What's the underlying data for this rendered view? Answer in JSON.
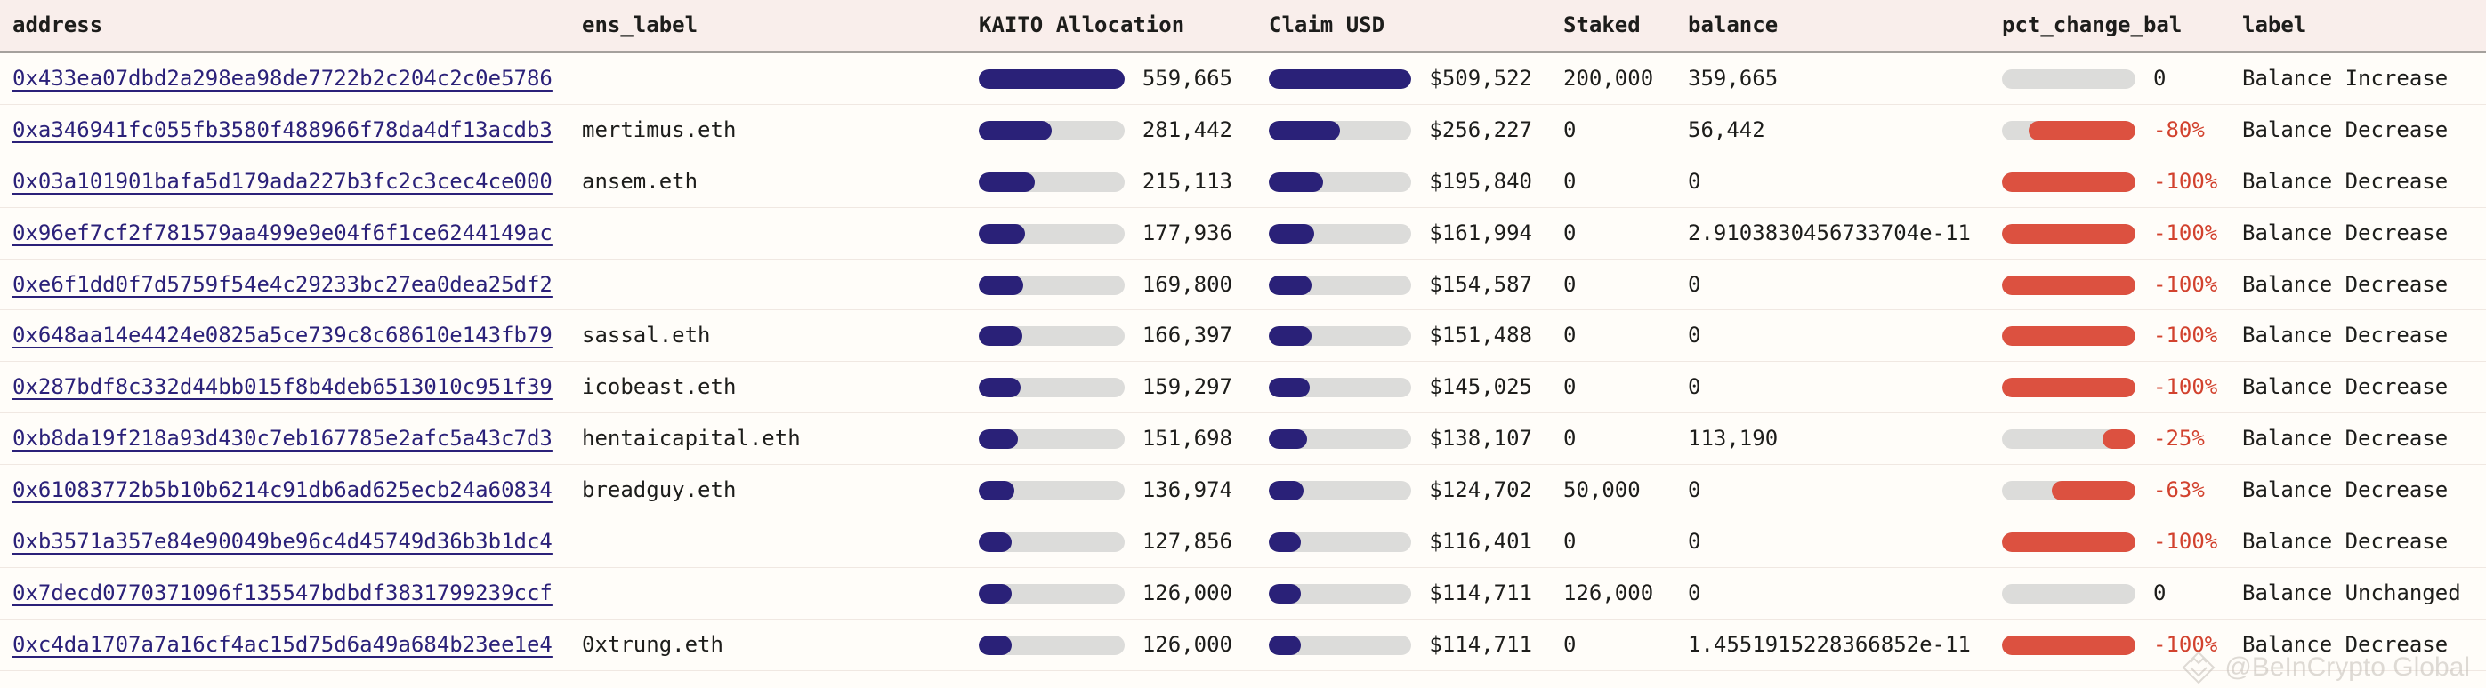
{
  "colors": {
    "bg": "#fffdf9",
    "text": "#1d1d1b",
    "header_bg": "#f9eeeb",
    "header_divider": "#a5a19d",
    "row_divider": "#f0e8e2",
    "track": "#dcdcda",
    "accent_navy": "#2a2178",
    "accent_red": "#dc5140",
    "red_text": "#d2422e",
    "link": "#2b2179",
    "watermark": "#c9c3bd"
  },
  "table": {
    "columns": [
      {
        "key": "address",
        "label": "address"
      },
      {
        "key": "ens_label",
        "label": "ens_label"
      },
      {
        "key": "kaito_allocation",
        "label": "KAITO Allocation"
      },
      {
        "key": "claim_usd",
        "label": "Claim USD"
      },
      {
        "key": "staked",
        "label": "Staked"
      },
      {
        "key": "balance",
        "label": "balance"
      },
      {
        "key": "pct_change_bal",
        "label": "pct_change_bal"
      },
      {
        "key": "label",
        "label": "label"
      }
    ],
    "rows": [
      {
        "address": "0x433ea07dbd2a298ea98de7722b2c204c2c0e5786",
        "ens_label": "",
        "kaito_allocation": "559,665",
        "kaito_fill_pct": 100,
        "claim_usd": "$509,522",
        "claim_fill_pct": 100,
        "staked": "200,000",
        "balance": "359,665",
        "pct_change_bal": "0",
        "pct_fill_pct": 0,
        "pct_negative": false,
        "label": "Balance Increase"
      },
      {
        "address": "0xa346941fc055fb3580f488966f78da4df13acdb3",
        "ens_label": "mertimus.eth",
        "kaito_allocation": "281,442",
        "kaito_fill_pct": 50.3,
        "claim_usd": "$256,227",
        "claim_fill_pct": 50.3,
        "staked": "0",
        "balance": "56,442",
        "pct_change_bal": "-80%",
        "pct_fill_pct": 80,
        "pct_negative": true,
        "label": "Balance Decrease"
      },
      {
        "address": "0x03a101901bafa5d179ada227b3fc2c3cec4ce000",
        "ens_label": "ansem.eth",
        "kaito_allocation": "215,113",
        "kaito_fill_pct": 38.4,
        "claim_usd": "$195,840",
        "claim_fill_pct": 38.4,
        "staked": "0",
        "balance": "0",
        "pct_change_bal": "-100%",
        "pct_fill_pct": 100,
        "pct_negative": true,
        "label": "Balance Decrease"
      },
      {
        "address": "0x96ef7cf2f781579aa499e9e04f6f1ce6244149ac",
        "ens_label": "",
        "kaito_allocation": "177,936",
        "kaito_fill_pct": 31.8,
        "claim_usd": "$161,994",
        "claim_fill_pct": 31.8,
        "staked": "0",
        "balance": "2.9103830456733704e-11",
        "pct_change_bal": "-100%",
        "pct_fill_pct": 100,
        "pct_negative": true,
        "label": "Balance Decrease"
      },
      {
        "address": "0xe6f1dd0f7d5759f54e4c29233bc27ea0dea25df2",
        "ens_label": "",
        "kaito_allocation": "169,800",
        "kaito_fill_pct": 30.3,
        "claim_usd": "$154,587",
        "claim_fill_pct": 30.3,
        "staked": "0",
        "balance": "0",
        "pct_change_bal": "-100%",
        "pct_fill_pct": 100,
        "pct_negative": true,
        "label": "Balance Decrease"
      },
      {
        "address": "0x648aa14e4424e0825a5ce739c8c68610e143fb79",
        "ens_label": "sassal.eth",
        "kaito_allocation": "166,397",
        "kaito_fill_pct": 29.7,
        "claim_usd": "$151,488",
        "claim_fill_pct": 29.7,
        "staked": "0",
        "balance": "0",
        "pct_change_bal": "-100%",
        "pct_fill_pct": 100,
        "pct_negative": true,
        "label": "Balance Decrease"
      },
      {
        "address": "0x287bdf8c332d44bb015f8b4deb6513010c951f39",
        "ens_label": "icobeast.eth",
        "kaito_allocation": "159,297",
        "kaito_fill_pct": 28.5,
        "claim_usd": "$145,025",
        "claim_fill_pct": 28.5,
        "staked": "0",
        "balance": "0",
        "pct_change_bal": "-100%",
        "pct_fill_pct": 100,
        "pct_negative": true,
        "label": "Balance Decrease"
      },
      {
        "address": "0xb8da19f218a93d430c7eb167785e2afc5a43c7d3",
        "ens_label": "hentaicapital.eth",
        "kaito_allocation": "151,698",
        "kaito_fill_pct": 27.1,
        "claim_usd": "$138,107",
        "claim_fill_pct": 27.1,
        "staked": "0",
        "balance": "113,190",
        "pct_change_bal": "-25%",
        "pct_fill_pct": 25,
        "pct_negative": true,
        "label": "Balance Decrease"
      },
      {
        "address": "0x61083772b5b10b6214c91db6ad625ecb24a60834",
        "ens_label": "breadguy.eth",
        "kaito_allocation": "136,974",
        "kaito_fill_pct": 24.5,
        "claim_usd": "$124,702",
        "claim_fill_pct": 24.5,
        "staked": "50,000",
        "balance": "0",
        "pct_change_bal": "-63%",
        "pct_fill_pct": 63,
        "pct_negative": true,
        "label": "Balance Decrease"
      },
      {
        "address": "0xb3571a357e84e90049be96c4d45749d36b3b1dc4",
        "ens_label": "",
        "kaito_allocation": "127,856",
        "kaito_fill_pct": 22.8,
        "claim_usd": "$116,401",
        "claim_fill_pct": 22.8,
        "staked": "0",
        "balance": "0",
        "pct_change_bal": "-100%",
        "pct_fill_pct": 100,
        "pct_negative": true,
        "label": "Balance Decrease"
      },
      {
        "address": "0x7decd0770371096f135547bdbdf3831799239ccf",
        "ens_label": "",
        "kaito_allocation": "126,000",
        "kaito_fill_pct": 22.5,
        "claim_usd": "$114,711",
        "claim_fill_pct": 22.5,
        "staked": "126,000",
        "balance": "0",
        "pct_change_bal": "0",
        "pct_fill_pct": 0,
        "pct_negative": false,
        "label": "Balance Unchanged"
      },
      {
        "address": "0xc4da1707a7a16cf4ac15d75d6a49a684b23ee1e4",
        "ens_label": "0xtrung.eth",
        "kaito_allocation": "126,000",
        "kaito_fill_pct": 22.5,
        "claim_usd": "$114,711",
        "claim_fill_pct": 22.5,
        "staked": "0",
        "balance": "1.4551915228366852e-11",
        "pct_change_bal": "-100%",
        "pct_fill_pct": 100,
        "pct_negative": true,
        "label": "Balance Decrease"
      }
    ]
  },
  "watermark": {
    "text": "@BeInCrypto Global",
    "icon": "beincrypto-diamond-logo"
  },
  "chart_data": {
    "type": "table",
    "title": "KAITO Allocation by address",
    "columns": [
      "address",
      "ens_label",
      "KAITO Allocation",
      "Claim USD",
      "Staked",
      "balance",
      "pct_change_bal",
      "label"
    ],
    "bar_columns": {
      "KAITO Allocation": {
        "max": 559665,
        "color": "#2a2178"
      },
      "Claim USD": {
        "max": 509522,
        "color": "#2a2178"
      },
      "pct_change_bal": {
        "max": 100,
        "color": "#dc5140",
        "anchored": "right"
      }
    },
    "rows": [
      [
        "0x433ea07dbd2a298ea98de7722b2c204c2c0e5786",
        "",
        559665,
        509522,
        200000,
        359665,
        0,
        "Balance Increase"
      ],
      [
        "0xa346941fc055fb3580f488966f78da4df13acdb3",
        "mertimus.eth",
        281442,
        256227,
        0,
        56442,
        -80,
        "Balance Decrease"
      ],
      [
        "0x03a101901bafa5d179ada227b3fc2c3cec4ce000",
        "ansem.eth",
        215113,
        195840,
        0,
        0,
        -100,
        "Balance Decrease"
      ],
      [
        "0x96ef7cf2f781579aa499e9e04f6f1ce6244149ac",
        "",
        177936,
        161994,
        0,
        2.9103830456733704e-11,
        -100,
        "Balance Decrease"
      ],
      [
        "0xe6f1dd0f7d5759f54e4c29233bc27ea0dea25df2",
        "",
        169800,
        154587,
        0,
        0,
        -100,
        "Balance Decrease"
      ],
      [
        "0x648aa14e4424e0825a5ce739c8c68610e143fb79",
        "sassal.eth",
        166397,
        151488,
        0,
        0,
        -100,
        "Balance Decrease"
      ],
      [
        "0x287bdf8c332d44bb015f8b4deb6513010c951f39",
        "icobeast.eth",
        159297,
        145025,
        0,
        0,
        -100,
        "Balance Decrease"
      ],
      [
        "0xb8da19f218a93d430c7eb167785e2afc5a43c7d3",
        "hentaicapital.eth",
        151698,
        138107,
        0,
        113190,
        -25,
        "Balance Decrease"
      ],
      [
        "0x61083772b5b10b6214c91db6ad625ecb24a60834",
        "breadguy.eth",
        136974,
        124702,
        50000,
        0,
        -63,
        "Balance Decrease"
      ],
      [
        "0xb3571a357e84e90049be96c4d45749d36b3b1dc4",
        "",
        127856,
        116401,
        0,
        0,
        -100,
        "Balance Decrease"
      ],
      [
        "0x7decd0770371096f135547bdbdf3831799239ccf",
        "",
        126000,
        114711,
        126000,
        0,
        0,
        "Balance Unchanged"
      ],
      [
        "0xc4da1707a7a16cf4ac15d75d6a49a684b23ee1e4",
        "0xtrung.eth",
        126000,
        114711,
        0,
        1.4551915228366852e-11,
        -100,
        "Balance Decrease"
      ]
    ]
  }
}
